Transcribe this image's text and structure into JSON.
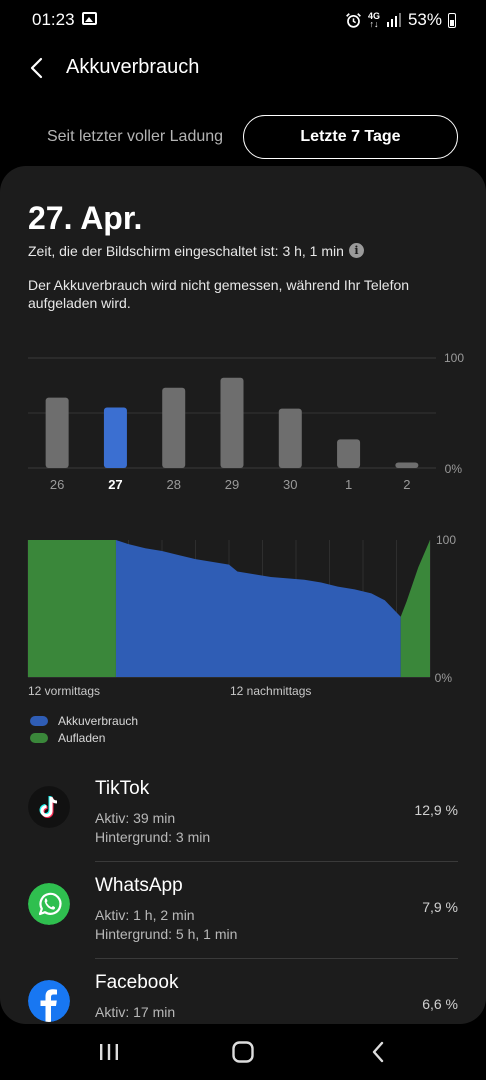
{
  "status_bar": {
    "time": "01:23",
    "network": "4G",
    "battery": "53%"
  },
  "header": {
    "title": "Akkuverbrauch"
  },
  "tabs": [
    {
      "label": "Seit letzter voller Ladung",
      "selected": false
    },
    {
      "label": "Letzte 7 Tage",
      "selected": true
    }
  ],
  "summary": {
    "date": "27. Apr.",
    "screen_time": "Zeit, die der Bildschirm eingeschaltet ist: 3 h, 1 min",
    "note": "Der Akkuverbrauch wird nicht gemessen, während Ihr Telefon aufgeladen wird."
  },
  "chart_data": [
    {
      "type": "bar",
      "categories": [
        "26",
        "27",
        "28",
        "29",
        "30",
        "1",
        "2"
      ],
      "values": [
        64,
        55,
        73,
        82,
        54,
        26,
        5
      ],
      "selected_category": "27",
      "ylim": [
        0,
        100
      ],
      "y_tick_labels": [
        "100",
        "0%"
      ],
      "colors": {
        "bar": "#6e6e6e",
        "selected": "#3b6fd1",
        "selected_label": "#ffffff",
        "label": "#9a9a9a"
      }
    },
    {
      "type": "area",
      "x_tick_labels": [
        "12 vormittags",
        "12 nachmittags"
      ],
      "y_tick_labels": [
        "100",
        "0%"
      ],
      "ylim": [
        0,
        100
      ],
      "xlim": [
        0,
        24
      ],
      "series": [
        {
          "name": "Akkuverbrauch",
          "color": "#2f5db5",
          "points": [
            [
              5.25,
              100
            ],
            [
              6,
              97
            ],
            [
              7,
              94
            ],
            [
              8,
              92
            ],
            [
              9,
              89
            ],
            [
              10,
              86
            ],
            [
              11,
              84
            ],
            [
              12,
              82
            ],
            [
              12.5,
              77
            ],
            [
              13.5,
              75
            ],
            [
              14.5,
              73
            ],
            [
              15.5,
              72
            ],
            [
              16.5,
              71
            ],
            [
              17.5,
              69
            ],
            [
              18.5,
              66
            ],
            [
              19.5,
              64
            ],
            [
              20.5,
              61
            ],
            [
              21.3,
              56
            ],
            [
              22.25,
              44
            ]
          ]
        },
        {
          "name": "Aufladen",
          "color": "#3a873a",
          "segments": [
            [
              [
                0,
                100
              ],
              [
                5.25,
                100
              ]
            ],
            [
              [
                22.25,
                44
              ],
              [
                22.6,
                55
              ],
              [
                23.3,
                80
              ],
              [
                24,
                100
              ]
            ]
          ]
        }
      ]
    }
  ],
  "legend": [
    {
      "label": "Akkuverbrauch",
      "color": "#2f5db5"
    },
    {
      "label": "Aufladen",
      "color": "#3a873a"
    }
  ],
  "apps": [
    {
      "name": "TikTok",
      "active": "Aktiv: 39 min",
      "background": "Hintergrund: 3 min",
      "percent": "12,9 %",
      "icon": "tiktok-icon"
    },
    {
      "name": "WhatsApp",
      "active": "Aktiv: 1 h, 2 min",
      "background": "Hintergrund: 5 h, 1 min",
      "percent": "7,9 %",
      "icon": "whatsapp-icon"
    },
    {
      "name": "Facebook",
      "active": "Aktiv: 17 min",
      "background": "",
      "percent": "6,6 %",
      "icon": "facebook-icon"
    }
  ]
}
